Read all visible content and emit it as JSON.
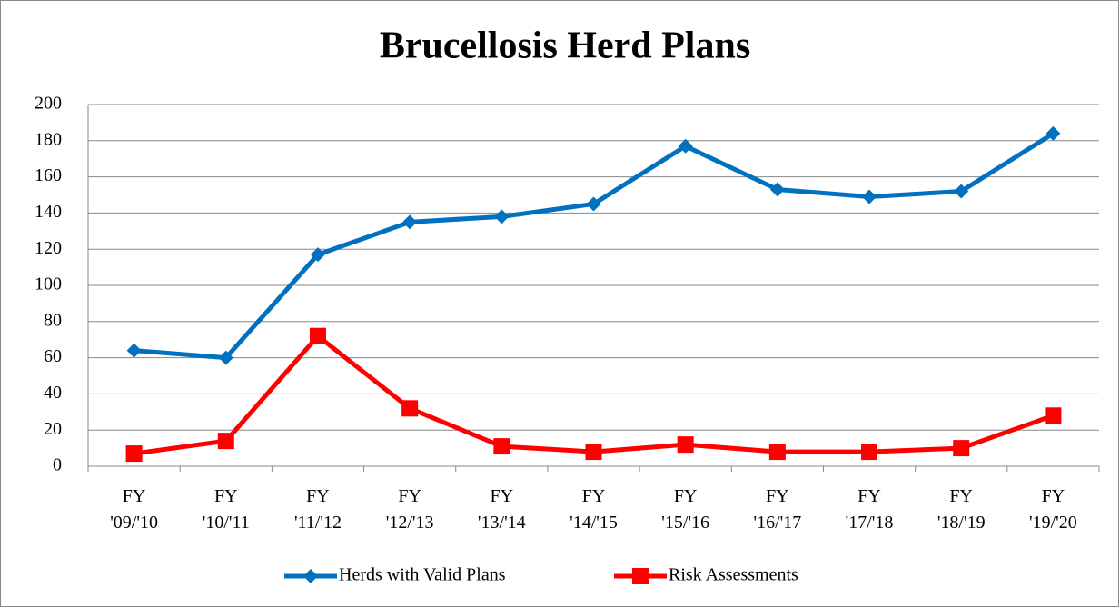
{
  "chart_data": {
    "type": "line",
    "title": "Brucellosis Herd Plans",
    "categories": [
      "FY '09/'10",
      "FY '10/'11",
      "FY '11/'12",
      "FY '12/'13",
      "FY '13/'14",
      "FY '14/'15",
      "FY '15/'16",
      "FY '16/'17",
      "FY '17/'18",
      "FY '18/'19",
      "FY '19/'20"
    ],
    "series": [
      {
        "name": "Herds with Valid Plans",
        "color": "#0070c0",
        "marker": "diamond",
        "values": [
          64,
          60,
          117,
          135,
          138,
          145,
          177,
          153,
          149,
          152,
          184
        ]
      },
      {
        "name": "Risk Assessments",
        "color": "#ff0000",
        "marker": "square",
        "values": [
          7,
          14,
          72,
          32,
          11,
          8,
          12,
          8,
          8,
          10,
          28
        ]
      }
    ],
    "ylim": [
      0,
      200
    ],
    "yticks": [
      0,
      20,
      40,
      60,
      80,
      100,
      120,
      140,
      160,
      180,
      200
    ],
    "grid": true,
    "legend": "bottom"
  }
}
